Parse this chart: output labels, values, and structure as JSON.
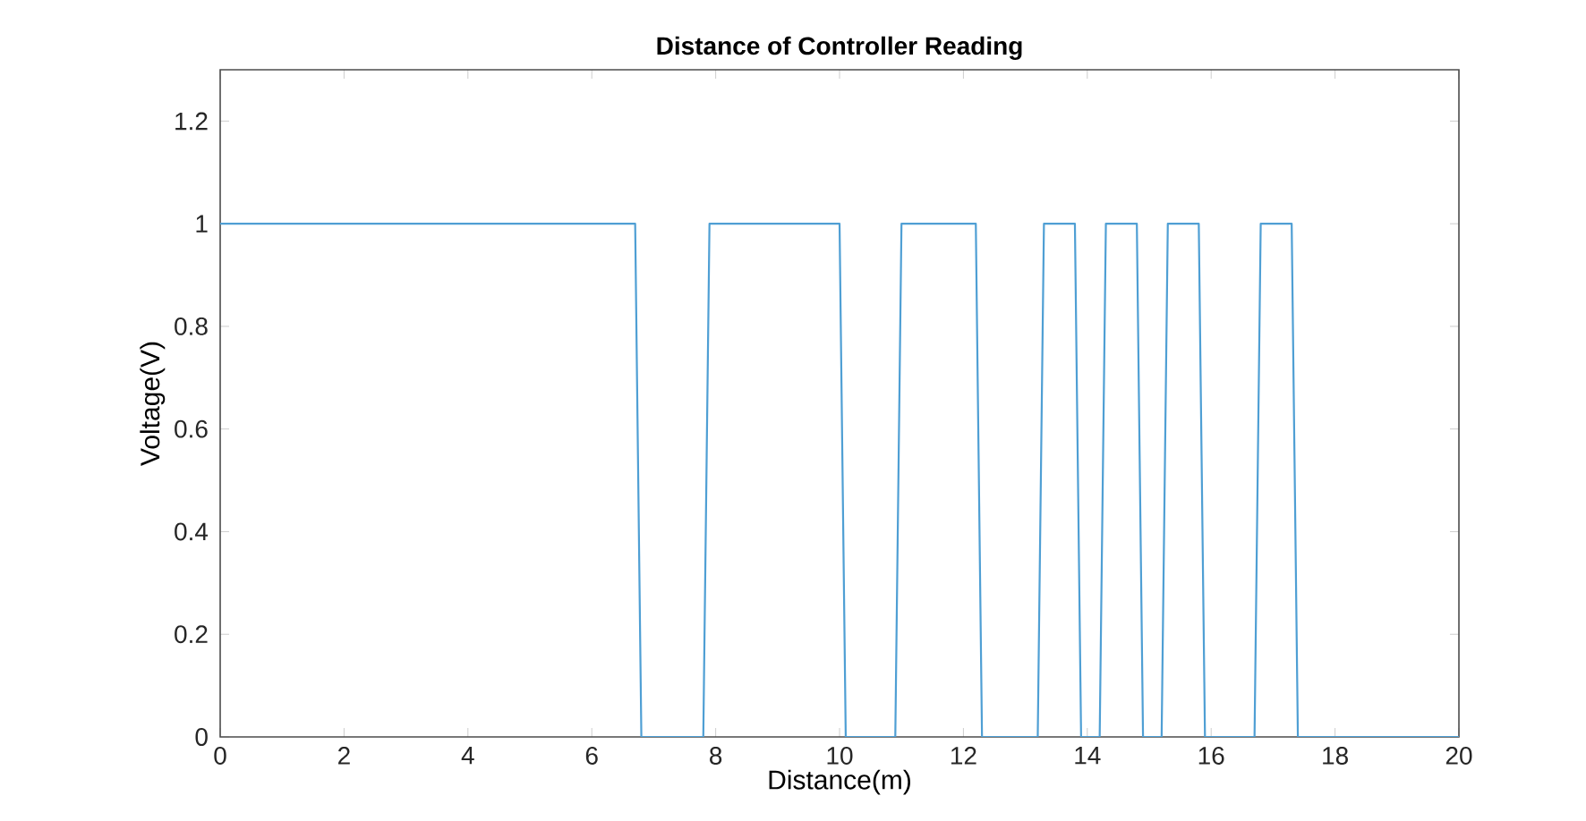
{
  "chart_data": {
    "type": "line",
    "title": "Distance of Controller Reading",
    "xlabel": "Distance(m)",
    "ylabel": "Voltage(V)",
    "x": [
      0,
      6.7,
      6.8,
      7.8,
      7.9,
      10.0,
      10.1,
      10.9,
      11.0,
      12.2,
      12.3,
      13.2,
      13.3,
      13.8,
      13.9,
      14.2,
      14.3,
      14.8,
      14.9,
      15.2,
      15.3,
      15.8,
      15.9,
      16.7,
      16.8,
      17.3,
      17.4,
      20
    ],
    "values": [
      1,
      1,
      0,
      0,
      1,
      1,
      0,
      0,
      1,
      1,
      0,
      0,
      1,
      1,
      0,
      0,
      1,
      1,
      0,
      0,
      1,
      1,
      0,
      0,
      1,
      1,
      0,
      0
    ],
    "color": "#4f9fd4",
    "xlim": [
      0,
      20
    ],
    "ylim": [
      0,
      1.3
    ],
    "xticks": [
      0,
      2,
      4,
      6,
      8,
      10,
      12,
      14,
      16,
      18,
      20
    ],
    "yticks": [
      0,
      0.2,
      0.4,
      0.6,
      0.8,
      1,
      1.2
    ],
    "grid": false,
    "marker": "none",
    "line_style": "solid"
  }
}
